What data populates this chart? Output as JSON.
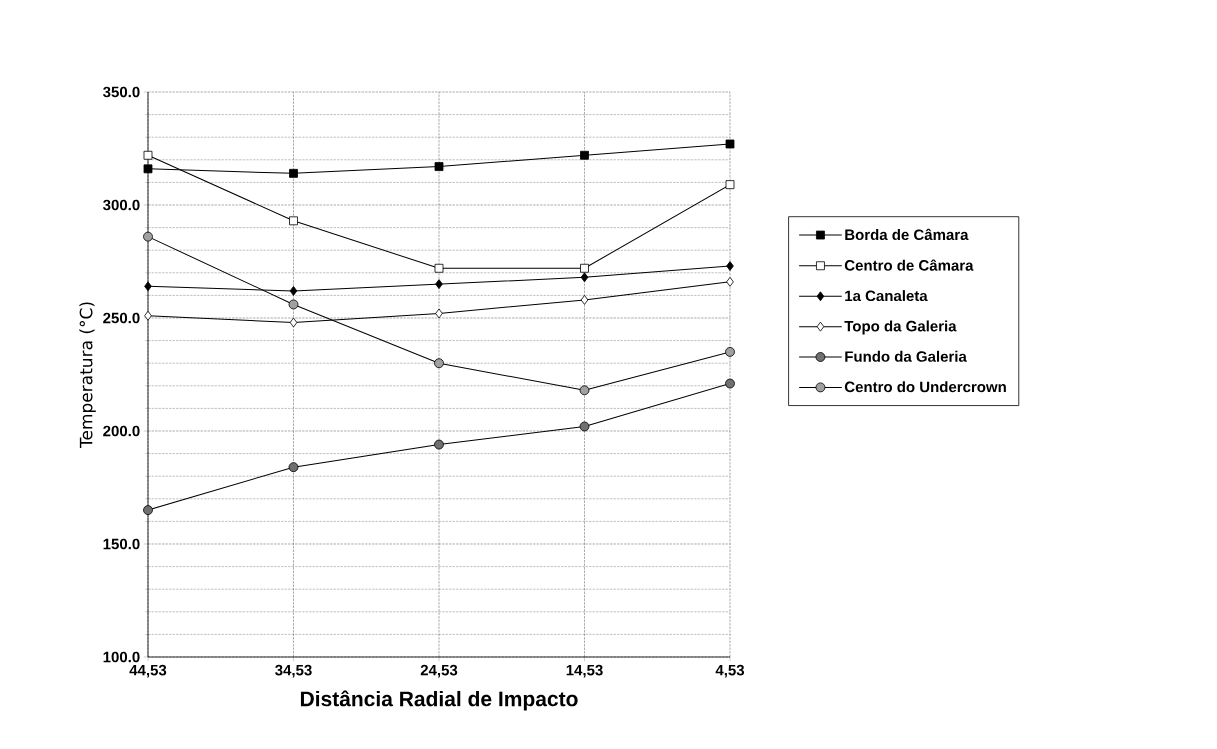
{
  "chart_data": {
    "type": "line",
    "xlabel": "Distância Radial de Impacto",
    "ylabel": "Temperatura (°C)",
    "categories": [
      "44,53",
      "34,53",
      "24,53",
      "14,53",
      "4,53"
    ],
    "series": [
      {
        "name": "Borda de Câmara",
        "color": "#000000",
        "marker": "square",
        "values": [
          316,
          314,
          317,
          322,
          327
        ]
      },
      {
        "name": "Centro de Câmara",
        "color": "#ffffff",
        "marker": "square",
        "values": [
          322,
          293,
          272,
          272,
          309
        ]
      },
      {
        "name": "1a Canaleta",
        "color": "#000000",
        "marker": "diamond",
        "values": [
          264,
          262,
          265,
          268,
          273
        ]
      },
      {
        "name": "Topo da Galeria",
        "color": "#ffffff",
        "marker": "diamond",
        "values": [
          251,
          248,
          252,
          258,
          266
        ]
      },
      {
        "name": "Fundo da Galeria",
        "color": "#707070",
        "marker": "circle",
        "values": [
          165,
          184,
          194,
          202,
          221
        ]
      },
      {
        "name": "Centro do Undercrown",
        "color": "#a0a0a0",
        "marker": "circle",
        "values": [
          286,
          256,
          230,
          218,
          235
        ]
      }
    ],
    "ylim": [
      100,
      350
    ],
    "yticks": [
      {
        "value": 100,
        "label": "100.0"
      },
      {
        "value": 150,
        "label": "150.0"
      },
      {
        "value": 200,
        "label": "200.0"
      },
      {
        "value": 250,
        "label": "250.0"
      },
      {
        "value": 300,
        "label": "300.0"
      },
      {
        "value": 350,
        "label": "350.0"
      }
    ],
    "grid": true,
    "legend": "right",
    "line_style": "solid"
  }
}
